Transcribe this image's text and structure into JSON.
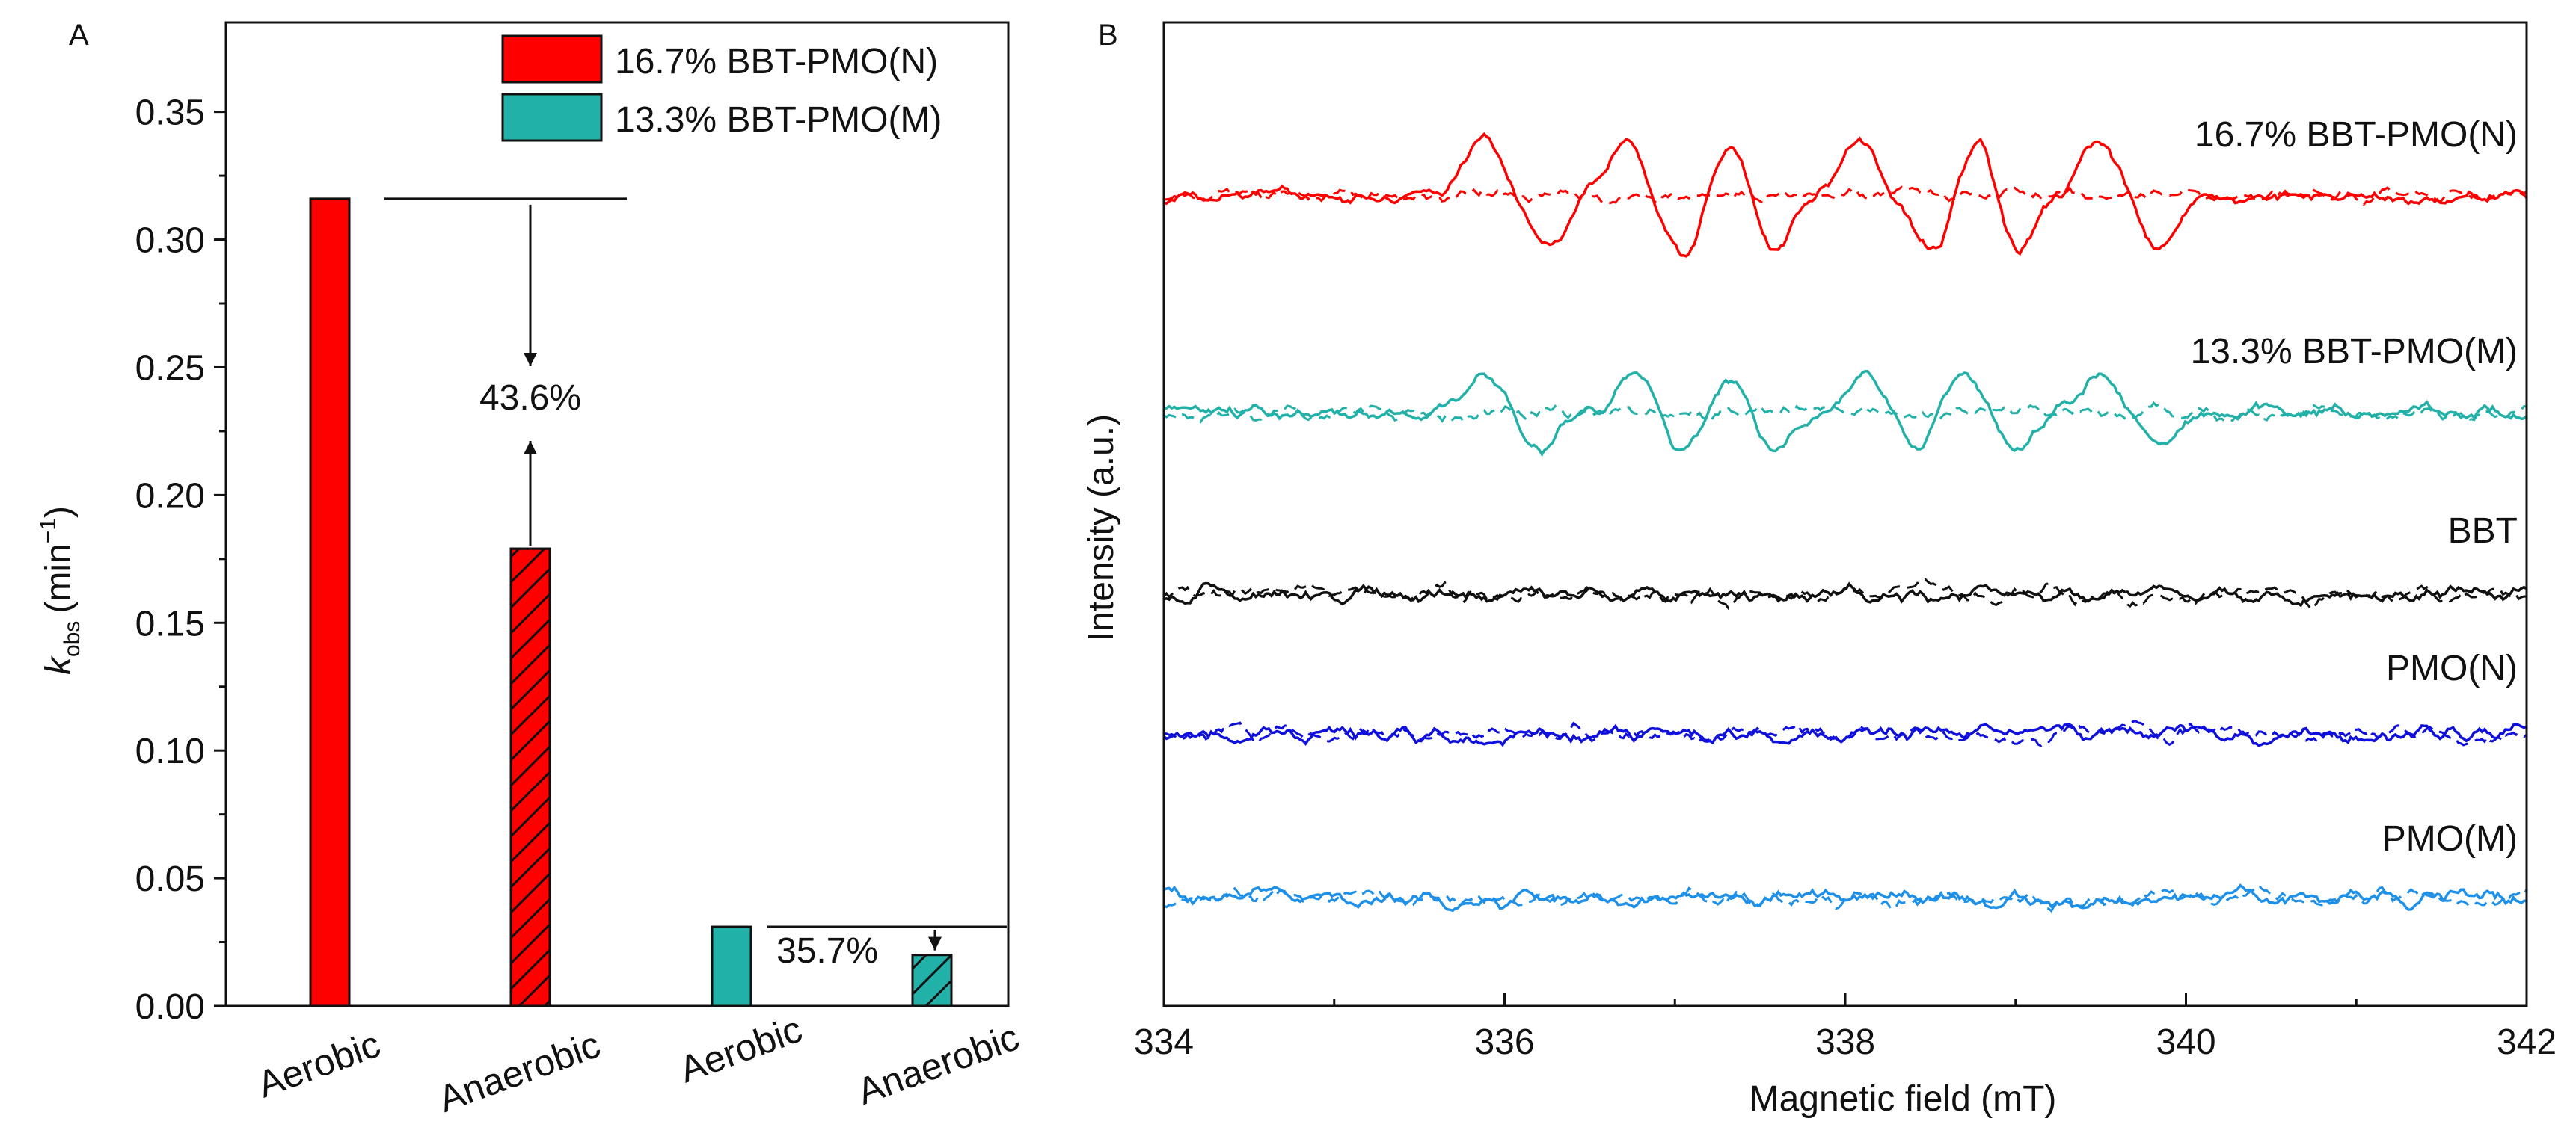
{
  "colors": {
    "red": "#ff0000",
    "teal": "#22b1a8",
    "black": "#111111",
    "blue": "#1010dd",
    "lightblue": "#1e90e8"
  },
  "chart_data": [
    {
      "panel": "A",
      "type": "bar",
      "xlabel": "",
      "ylabel_main": "k",
      "ylabel_sub": "obs",
      "ylabel_unit_open": "(min",
      "ylabel_unit_exp": "−1",
      "ylabel_unit_close": ")",
      "ylim": [
        0,
        0.385
      ],
      "yticks": [
        0.0,
        0.05,
        0.1,
        0.15,
        0.2,
        0.25,
        0.3,
        0.35
      ],
      "ytick_labels": [
        "0.00",
        "0.05",
        "0.10",
        "0.15",
        "0.20",
        "0.25",
        "0.30",
        "0.35"
      ],
      "categories": [
        "Aerobic",
        "Anaerobic",
        "Aerobic",
        "Anaerobic"
      ],
      "bars": [
        {
          "category": "Aerobic",
          "series": "16.7% BBT-PMO(N)",
          "value": 0.316,
          "hatched": false
        },
        {
          "category": "Anaerobic",
          "series": "16.7% BBT-PMO(N)",
          "value": 0.179,
          "hatched": true
        },
        {
          "category": "Aerobic",
          "series": "13.3% BBT-PMO(M)",
          "value": 0.031,
          "hatched": false
        },
        {
          "category": "Anaerobic",
          "series": "13.3% BBT-PMO(M)",
          "value": 0.02,
          "hatched": true
        }
      ],
      "legend": [
        {
          "label": "16.7% BBT-PMO(N)",
          "color": "#ff0000"
        },
        {
          "label": "13.3% BBT-PMO(M)",
          "color": "#22b1a8"
        }
      ],
      "annotations": [
        {
          "text": "43.6%",
          "from_value": 0.316,
          "to_value": 0.179
        },
        {
          "text": "35.7%",
          "from_value": 0.031,
          "to_value": 0.02
        }
      ]
    },
    {
      "panel": "B",
      "type": "line",
      "xlabel": "Magnetic field (mT)",
      "ylabel": "Intensity (a.u.)",
      "xlim": [
        334,
        342
      ],
      "xticks": [
        334,
        336,
        338,
        340,
        342
      ],
      "xtick_labels": [
        "334",
        "336",
        "338",
        "340",
        "342"
      ],
      "series": [
        {
          "name": "16.7% BBT-PMO(N)",
          "color": "#ff0000",
          "baseline": 0.0,
          "signal": "strong",
          "peaks_mT": [
            335.88,
            336.72,
            337.33,
            338.08,
            338.78,
            339.48
          ],
          "troughs_mT": [
            336.25,
            337.05,
            337.58,
            338.5,
            339.0,
            339.85
          ]
        },
        {
          "name": "13.3% BBT-PMO(M)",
          "color": "#22b1a8",
          "baseline": 0.0,
          "signal": "medium",
          "peaks_mT": [
            335.88,
            336.78,
            337.33,
            338.12,
            338.68,
            339.5
          ],
          "troughs_mT": [
            336.22,
            337.05,
            337.58,
            338.42,
            339.02,
            339.85
          ]
        },
        {
          "name": "BBT",
          "color": "#111111",
          "baseline": 0.0,
          "signal": "noise"
        },
        {
          "name": "PMO(N)",
          "color": "#1010dd",
          "baseline": 0.0,
          "signal": "noise"
        },
        {
          "name": "PMO(M)",
          "color": "#1e90e8",
          "baseline": 0.0,
          "signal": "noise"
        }
      ],
      "line_styles": [
        "solid",
        "dashed"
      ]
    }
  ]
}
